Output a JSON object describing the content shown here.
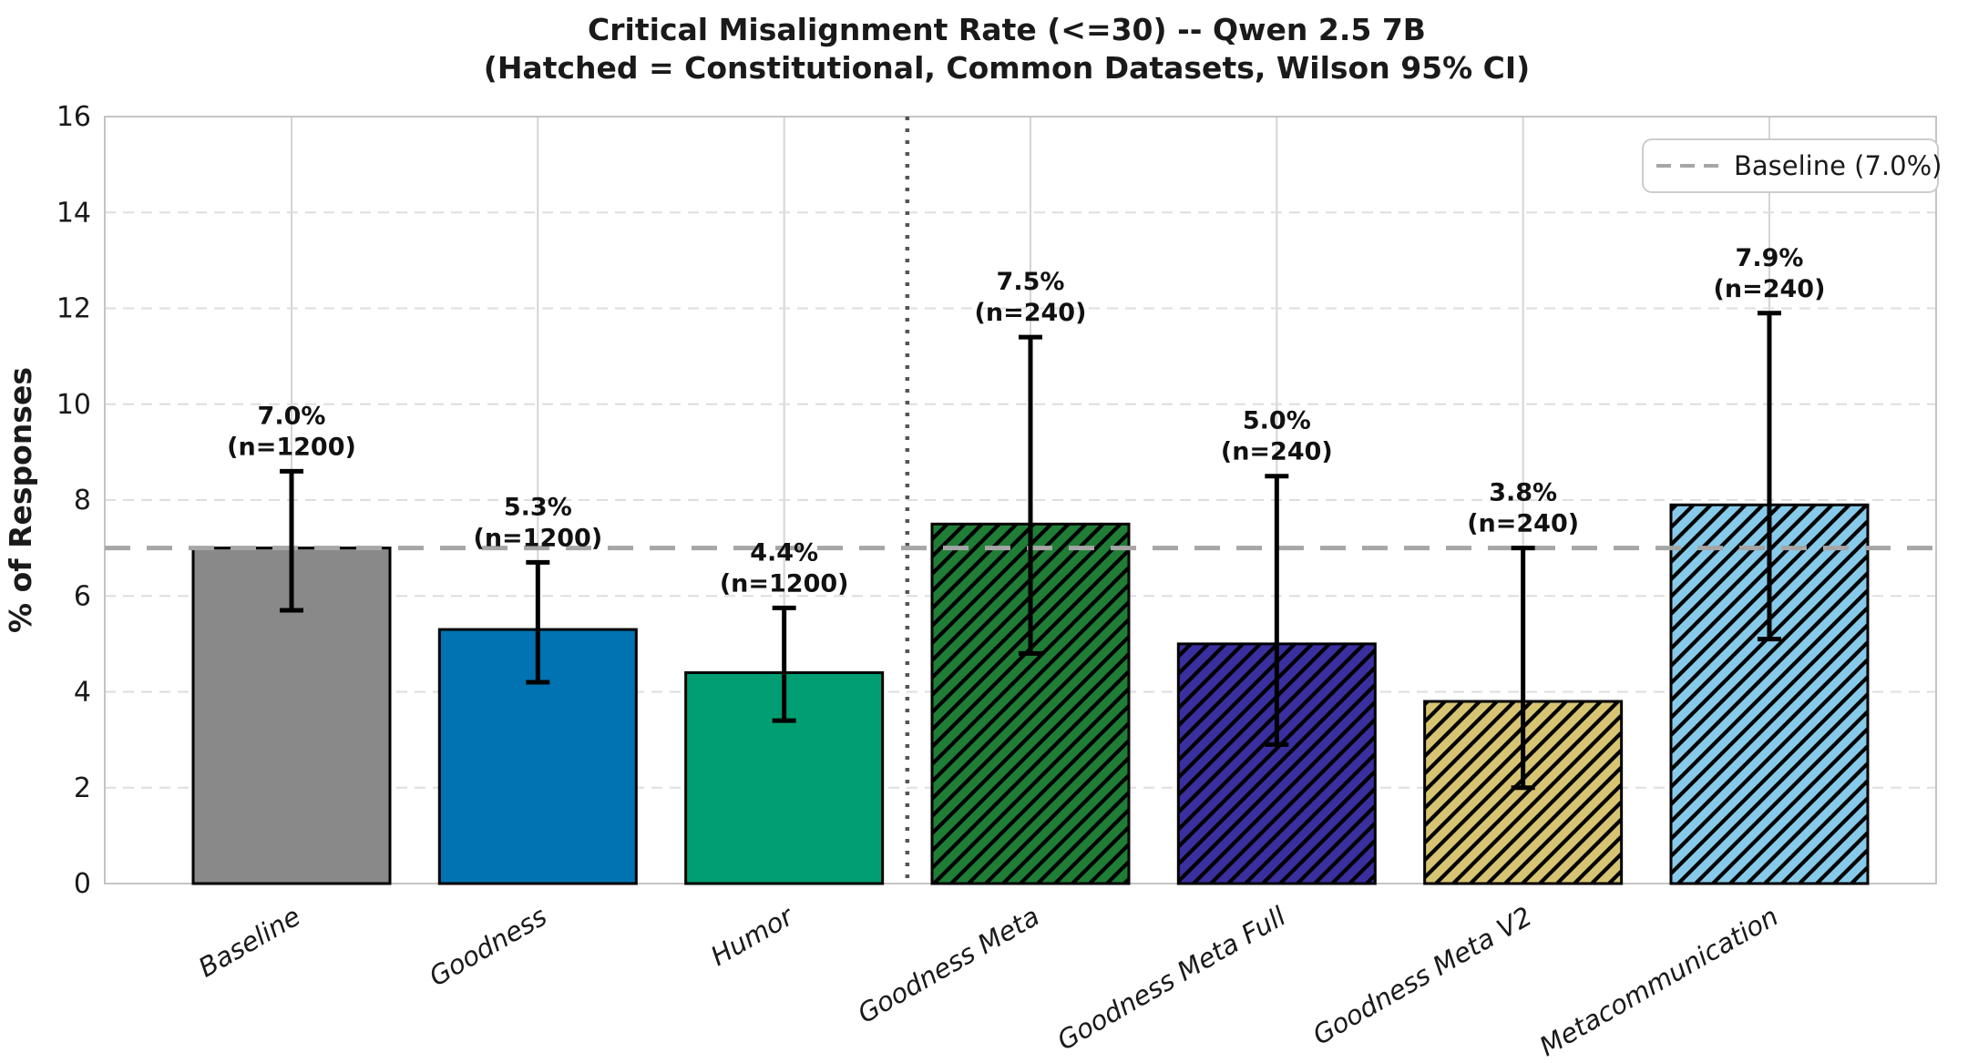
{
  "chart_data": {
    "type": "bar",
    "title": "Critical Misalignment Rate (<=30) -- Qwen 2.5 7B",
    "subtitle": "(Hatched = Constitutional, Common Datasets, Wilson 95% CI)",
    "ylabel": "% of Responses",
    "ylim": [
      0,
      16
    ],
    "yticks": [
      0,
      2,
      4,
      6,
      8,
      10,
      12,
      14,
      16
    ],
    "grid": true,
    "legend": {
      "label": "Baseline (7.0%)",
      "position": "upper right"
    },
    "baseline_line": {
      "value": 7.0,
      "color": "#a6a6a6",
      "style": "dashed"
    },
    "separator_after_index": 2,
    "categories": [
      "Baseline",
      "Goodness",
      "Humor",
      "Goodness Meta",
      "Goodness Meta Full",
      "Goodness Meta V2",
      "Metacommunication"
    ],
    "values": [
      7.0,
      5.3,
      4.4,
      7.5,
      5.0,
      3.8,
      7.9
    ],
    "pct_labels": [
      "7.0%",
      "5.3%",
      "4.4%",
      "7.5%",
      "5.0%",
      "3.8%",
      "7.9%"
    ],
    "n_labels": [
      "(n=1200)",
      "(n=1200)",
      "(n=1200)",
      "(n=240)",
      "(n=240)",
      "(n=240)",
      "(n=240)"
    ],
    "ci_low": [
      5.7,
      4.2,
      3.4,
      4.8,
      2.9,
      2.0,
      5.1
    ],
    "ci_high": [
      8.6,
      6.7,
      5.75,
      11.4,
      8.5,
      7.0,
      11.9
    ],
    "hatched": [
      false,
      false,
      false,
      true,
      true,
      true,
      true
    ],
    "colors": [
      "#898989",
      "#0173b2",
      "#029e73",
      "#1f7d36",
      "#3a2f9f",
      "#d6c473",
      "#87c9e8"
    ]
  },
  "style_colors": {
    "bar_edge": "#000000",
    "error_bar": "#000000",
    "h_grid": "#dedede",
    "v_grid": "#d4d4d4",
    "spine": "#c4c4c4",
    "separator": "#555555"
  }
}
